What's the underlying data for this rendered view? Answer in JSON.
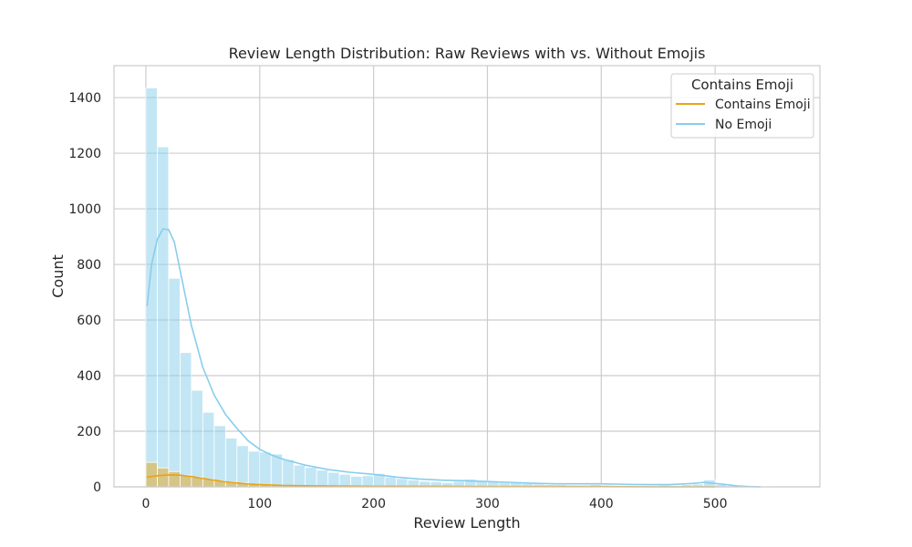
{
  "chart_data": {
    "type": "histogram",
    "title": "Review Length Distribution: Raw Reviews with vs. Without Emojis",
    "xlabel": "Review Length",
    "ylabel": "Count",
    "xlim": [
      -28,
      592
    ],
    "ylim": [
      0,
      1515
    ],
    "xticks": [
      0,
      100,
      200,
      300,
      400,
      500
    ],
    "yticks": [
      0,
      200,
      400,
      600,
      800,
      1000,
      1200,
      1400
    ],
    "grid": true,
    "legend": {
      "title": "Contains Emoji",
      "placement": "top-right",
      "entries": [
        "Contains Emoji",
        "No Emoji"
      ]
    },
    "bin_width": 10,
    "bin_start": 0,
    "series": [
      {
        "name": "No Emoji",
        "color": "#87ceeb",
        "counts": [
          1435,
          1223,
          750,
          483,
          347,
          268,
          220,
          175,
          148,
          128,
          125,
          118,
          98,
          78,
          70,
          60,
          52,
          45,
          38,
          40,
          48,
          35,
          30,
          25,
          20,
          18,
          15,
          20,
          28,
          22,
          18,
          15,
          15,
          12,
          10,
          8,
          8,
          6,
          6,
          8,
          6,
          5,
          5,
          4,
          4,
          6,
          5,
          8,
          10,
          25,
          8,
          4,
          3,
          2,
          2,
          1,
          1
        ],
        "kde": [
          [
            1,
            650
          ],
          [
            5,
            800
          ],
          [
            10,
            890
          ],
          [
            15,
            928
          ],
          [
            20,
            925
          ],
          [
            25,
            880
          ],
          [
            30,
            780
          ],
          [
            35,
            680
          ],
          [
            40,
            580
          ],
          [
            50,
            430
          ],
          [
            60,
            330
          ],
          [
            70,
            260
          ],
          [
            80,
            210
          ],
          [
            90,
            165
          ],
          [
            100,
            135
          ],
          [
            110,
            115
          ],
          [
            120,
            100
          ],
          [
            140,
            78
          ],
          [
            160,
            62
          ],
          [
            180,
            52
          ],
          [
            200,
            45
          ],
          [
            220,
            35
          ],
          [
            240,
            28
          ],
          [
            260,
            24
          ],
          [
            280,
            22
          ],
          [
            300,
            19
          ],
          [
            320,
            16
          ],
          [
            340,
            13
          ],
          [
            360,
            11
          ],
          [
            380,
            11
          ],
          [
            400,
            11
          ],
          [
            420,
            9
          ],
          [
            440,
            8
          ],
          [
            460,
            8
          ],
          [
            480,
            12
          ],
          [
            490,
            16
          ],
          [
            500,
            12
          ],
          [
            510,
            8
          ],
          [
            520,
            3
          ],
          [
            530,
            1
          ],
          [
            540,
            0
          ]
        ]
      },
      {
        "name": "Contains Emoji",
        "color": "#e8a317",
        "counts": [
          88,
          68,
          55,
          42,
          35,
          28,
          22,
          18,
          14,
          10,
          8,
          6,
          5,
          4,
          3,
          3,
          2,
          2,
          2,
          1,
          1,
          1,
          1,
          1,
          1,
          1,
          0,
          1,
          1,
          1,
          0,
          1,
          0,
          1,
          0,
          0,
          0,
          0,
          0,
          0,
          0,
          0,
          0,
          0,
          0,
          0,
          0,
          0,
          0,
          0,
          0,
          0,
          0,
          0,
          0,
          0,
          0
        ],
        "kde": [
          [
            1,
            35
          ],
          [
            10,
            40
          ],
          [
            20,
            43
          ],
          [
            30,
            42
          ],
          [
            40,
            37
          ],
          [
            50,
            30
          ],
          [
            60,
            24
          ],
          [
            70,
            18
          ],
          [
            80,
            14
          ],
          [
            90,
            10
          ],
          [
            100,
            8
          ],
          [
            120,
            5
          ],
          [
            140,
            4
          ],
          [
            160,
            3
          ],
          [
            200,
            2
          ],
          [
            250,
            2
          ],
          [
            300,
            1
          ],
          [
            350,
            1
          ],
          [
            400,
            1
          ],
          [
            450,
            0
          ],
          [
            500,
            0
          ]
        ]
      }
    ]
  }
}
